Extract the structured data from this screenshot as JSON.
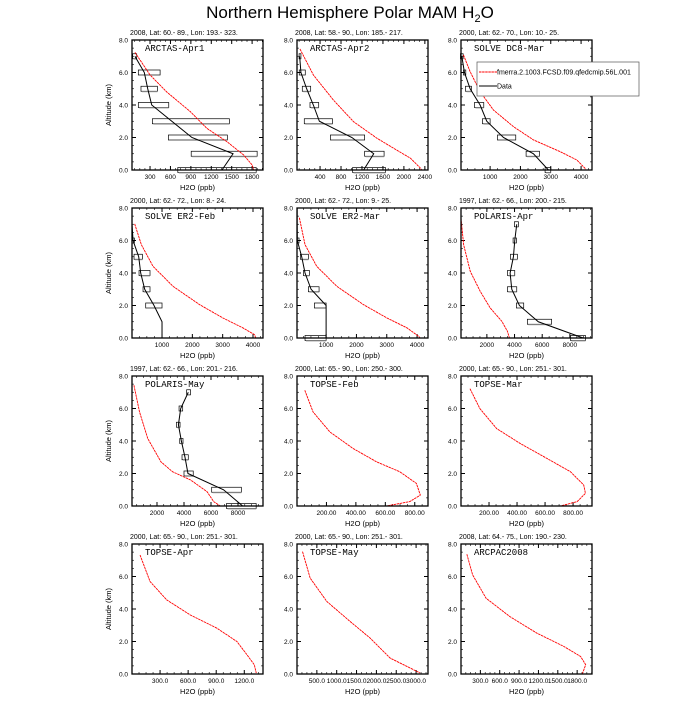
{
  "title": {
    "main": "Northern Hemisphere Polar MAM H",
    "sub": "2",
    "tail": "O"
  },
  "colors": {
    "model": "#ff0000",
    "data": "#000000",
    "box_edge": "#000000",
    "box_shade": "#aaaaaa"
  },
  "legend": {
    "model_label": "fmerra.2.1003.FCSD.f09.qfedcmip.56L.001",
    "data_label": "Data"
  },
  "chart_data": [
    {
      "type": "line",
      "title": "ARCTAS-Apr1",
      "subtitle": "2008, Lat:  60.- 89., Lon: 193.- 323.",
      "xlabel": "H2O (ppb)",
      "ylabel": "Altitude (km)",
      "xlim": [
        35,
        1960
      ],
      "ylim": [
        0,
        8
      ],
      "xticks": [
        300,
        600,
        900,
        1200,
        1500,
        1800
      ],
      "xtick_labels": [
        "300",
        "600",
        "900",
        "1200",
        "1500",
        "1800"
      ],
      "model": [
        [
          78,
          7.24
        ],
        [
          300,
          5.85
        ],
        [
          546,
          4.8
        ],
        [
          890,
          3.6
        ],
        [
          1136,
          2.56
        ],
        [
          1431,
          1.74
        ],
        [
          1677,
          0.92
        ],
        [
          1800,
          0.31
        ],
        [
          1825,
          0
        ]
      ],
      "data": [
        [
          78,
          7
        ],
        [
          216,
          6
        ],
        [
          266,
          5
        ],
        [
          325,
          4
        ],
        [
          620,
          3
        ],
        [
          915,
          2
        ],
        [
          1520,
          1
        ],
        [
          1357,
          0
        ]
      ],
      "boxes": [
        [
          45,
          104,
          7
        ],
        [
          128,
          448,
          6
        ],
        [
          167,
          408,
          5
        ],
        [
          128,
          575,
          4
        ],
        [
          334,
          1466,
          3
        ],
        [
          570,
          1436,
          2
        ],
        [
          905,
          1874,
          1
        ],
        [
          708,
          1860,
          0
        ]
      ]
    },
    {
      "type": "line",
      "title": "ARCTAS-Apr2",
      "subtitle": "2008, Lat:  58.- 90., Lon: 185.- 217.",
      "xlabel": "H2O (ppb)",
      "ylabel": "",
      "xlim": [
        -40,
        2460
      ],
      "ylim": [
        0,
        8
      ],
      "xticks": [
        400,
        800,
        1200,
        1600,
        2000,
        2400
      ],
      "xtick_labels": [
        "400",
        "800",
        "1200",
        "1600",
        "2000",
        "2400"
      ],
      "model": [
        [
          16,
          7.45
        ],
        [
          272,
          5.85
        ],
        [
          656,
          4.3
        ],
        [
          1040,
          2.97
        ],
        [
          1488,
          1.95
        ],
        [
          1808,
          1.33
        ],
        [
          2128,
          0.72
        ],
        [
          2320,
          0.1
        ],
        [
          2340,
          0
        ]
      ],
      "data": [
        [
          10,
          7
        ],
        [
          35,
          6
        ],
        [
          144,
          5
        ],
        [
          272,
          4
        ],
        [
          387,
          3
        ],
        [
          1008,
          2
        ],
        [
          1424,
          1
        ],
        [
          1232,
          0
        ]
      ],
      "boxes": [
        [
          0,
          35,
          7
        ],
        [
          3,
          118,
          6
        ],
        [
          61,
          221,
          5
        ],
        [
          208,
          374,
          4
        ],
        [
          99,
          637,
          3
        ],
        [
          598,
          1251,
          2
        ],
        [
          1251,
          1622,
          1
        ],
        [
          1021,
          1648,
          0
        ]
      ]
    },
    {
      "type": "line",
      "title": "SOLVE DC8-Mar",
      "subtitle": "2000, Lat: 62.- 70., Lon: 10.- 25.",
      "xlabel": "H2O (ppb)",
      "ylabel": "",
      "xlim": [
        40,
        4360
      ],
      "ylim": [
        0,
        8
      ],
      "xticks": [
        1000,
        2000,
        3000,
        4000
      ],
      "xtick_labels": [
        "1000",
        "2000",
        "3000",
        "4000"
      ],
      "model": [
        [
          121,
          7.08
        ],
        [
          341,
          6.05
        ],
        [
          670,
          4.82
        ],
        [
          1110,
          3.69
        ],
        [
          1769,
          2.67
        ],
        [
          2430,
          1.85
        ],
        [
          3308,
          1.13
        ],
        [
          3857,
          0.62
        ],
        [
          4132,
          0.1
        ],
        [
          4140,
          0
        ]
      ],
      "data": [
        [
          66,
          7
        ],
        [
          154,
          6
        ],
        [
          341,
          5
        ],
        [
          670,
          4
        ],
        [
          890,
          3
        ],
        [
          1440,
          2
        ],
        [
          2430,
          1
        ],
        [
          2923,
          0
        ]
      ],
      "boxes": [
        [
          22,
          110,
          7
        ],
        [
          121,
          198,
          6
        ],
        [
          187,
          385,
          5
        ],
        [
          483,
          791,
          4
        ],
        [
          747,
          1000,
          3
        ],
        [
          1242,
          1846,
          2
        ],
        [
          2187,
          2627,
          1
        ],
        [
          2813,
          3000,
          0
        ]
      ],
      "legend": true
    },
    {
      "type": "line",
      "title": "SOLVE ER2-Feb",
      "subtitle": "2000, Lat: 62.- 72., Lon: 8.- 24.",
      "xlabel": "H2O (ppb)",
      "ylabel": "Altitude (km)",
      "xlim": [
        10,
        4330
      ],
      "ylim": [
        0,
        8
      ],
      "xticks": [
        1000,
        2000,
        3000,
        4000
      ],
      "xtick_labels": [
        "1000",
        "2000",
        "3000",
        "4000"
      ],
      "model": [
        [
          99,
          7.02
        ],
        [
          319,
          5.74
        ],
        [
          703,
          4.41
        ],
        [
          1363,
          3.18
        ],
        [
          2242,
          2.05
        ],
        [
          3011,
          1.23
        ],
        [
          3670,
          0.62
        ],
        [
          4055,
          0.2
        ],
        [
          4088,
          0
        ]
      ],
      "data": [
        [
          11,
          8
        ],
        [
          11,
          7
        ],
        [
          44,
          6
        ],
        [
          231,
          5
        ],
        [
          297,
          4
        ],
        [
          429,
          3
        ],
        [
          736,
          2
        ],
        [
          1000,
          1
        ],
        [
          1000,
          0
        ]
      ],
      "boxes": [
        [
          11,
          88,
          6
        ],
        [
          77,
          352,
          5
        ],
        [
          242,
          604,
          4
        ],
        [
          374,
          604,
          3
        ],
        [
          462,
          1000,
          2
        ]
      ]
    },
    {
      "type": "line",
      "title": "SOLVE ER2-Mar",
      "subtitle": "2000, Lat: 62.- 72., Lon: 9.- 25.",
      "xlabel": "H2O (ppb)",
      "ylabel": "",
      "xlim": [
        40,
        4360
      ],
      "ylim": [
        0,
        8
      ],
      "xticks": [
        1000,
        2000,
        3000,
        4000
      ],
      "xtick_labels": [
        "1000",
        "2000",
        "3000",
        "4000"
      ],
      "model": [
        [
          118,
          7.4
        ],
        [
          305,
          5.74
        ],
        [
          691,
          4.41
        ],
        [
          1353,
          3.18
        ],
        [
          2235,
          2.05
        ],
        [
          3008,
          1.23
        ],
        [
          3670,
          0.62
        ],
        [
          4055,
          0.1
        ],
        [
          4100,
          0
        ]
      ],
      "data": [
        [
          45,
          8
        ],
        [
          45,
          7
        ],
        [
          51,
          6
        ],
        [
          195,
          5
        ],
        [
          305,
          4
        ],
        [
          504,
          3
        ],
        [
          1000,
          2
        ],
        [
          1000,
          1
        ],
        [
          1000,
          0
        ]
      ],
      "boxes": [
        [
          45,
          107,
          6
        ],
        [
          151,
          415,
          5
        ],
        [
          250,
          449,
          4
        ],
        [
          415,
          768,
          3
        ],
        [
          614,
          1000,
          2
        ],
        [
          305,
          1000,
          0
        ]
      ]
    },
    {
      "type": "line",
      "title": "POLARIS-Apr",
      "subtitle": "1997, Lat: 62.- 66., Lon: 200.- 215.",
      "xlabel": "H2O (ppb)",
      "ylabel": "",
      "xlim": [
        130,
        9600
      ],
      "ylim": [
        0,
        8
      ],
      "xticks": [
        2000,
        4000,
        6000,
        8000
      ],
      "xtick_labels": [
        "2000",
        "4000",
        "6000",
        "8000"
      ],
      "model": [
        [
          128,
          7.38
        ],
        [
          320,
          5.74
        ],
        [
          800,
          4.1
        ],
        [
          1520,
          2.87
        ],
        [
          2240,
          1.85
        ],
        [
          3080,
          1.03
        ],
        [
          3488,
          0.41
        ],
        [
          3632,
          0
        ]
      ],
      "data": [
        [
          4160,
          7
        ],
        [
          4016,
          6
        ],
        [
          3920,
          5
        ],
        [
          3680,
          4
        ],
        [
          3800,
          3
        ],
        [
          4352,
          2
        ],
        [
          5720,
          1
        ],
        [
          8960,
          0
        ]
      ],
      "boxes": [
        [
          3992,
          4280,
          7
        ],
        [
          3896,
          4136,
          6
        ],
        [
          3704,
          4208,
          5
        ],
        [
          3488,
          4016,
          4
        ],
        [
          3488,
          4160,
          3
        ],
        [
          4136,
          4664,
          2
        ],
        [
          4928,
          6680,
          1
        ],
        [
          8048,
          9128,
          0
        ]
      ]
    },
    {
      "type": "line",
      "title": "POLARIS-May",
      "subtitle": "1997, Lat: 62.- 66., Lon: 201.- 216.",
      "xlabel": "H2O (ppb)",
      "ylabel": "Altitude (km)",
      "xlim": [
        150,
        9850
      ],
      "ylim": [
        0,
        8
      ],
      "xticks": [
        2000,
        4000,
        6000,
        8000
      ],
      "xtick_labels": [
        "2000",
        "4000",
        "6000",
        "8000"
      ],
      "model": [
        [
          292,
          7.43
        ],
        [
          707,
          5.79
        ],
        [
          1317,
          4.15
        ],
        [
          2293,
          2.72
        ],
        [
          3147,
          2.11
        ],
        [
          4489,
          1.6
        ],
        [
          5709,
          0.88
        ],
        [
          6197,
          0.27
        ],
        [
          6685,
          0
        ]
      ],
      "data": [
        [
          4318,
          7
        ],
        [
          3757,
          6
        ],
        [
          3586,
          5
        ],
        [
          3806,
          4
        ],
        [
          4074,
          3
        ],
        [
          4294,
          2
        ],
        [
          6929,
          1
        ],
        [
          8344,
          0
        ]
      ],
      "boxes": [
        [
          4196,
          4489,
          7
        ],
        [
          3635,
          3903,
          6
        ],
        [
          3440,
          3708,
          5
        ],
        [
          3684,
          3928,
          4
        ],
        [
          3854,
          4318,
          3
        ],
        [
          4000,
          4684,
          2
        ],
        [
          6050,
          8246,
          1
        ],
        [
          7148,
          9344,
          0
        ]
      ]
    },
    {
      "type": "line",
      "title": "TOPSE-Feb",
      "subtitle": "2000, Lat: 65.- 90., Lon: 250.- 300.",
      "xlabel": "H2O (ppb)",
      "ylabel": "",
      "xlim": [
        0,
        890
      ],
      "ylim": [
        0,
        8
      ],
      "xticks": [
        200,
        400,
        600,
        800
      ],
      "xtick_labels": [
        "200.00",
        "400.00",
        "600.00",
        "800.00"
      ],
      "model": [
        [
          53,
          7.12
        ],
        [
          109,
          5.79
        ],
        [
          223,
          4.56
        ],
        [
          381,
          3.54
        ],
        [
          540,
          2.72
        ],
        [
          698,
          2.11
        ],
        [
          811,
          1.39
        ],
        [
          838,
          0.67
        ],
        [
          766,
          0.27
        ],
        [
          608,
          0
        ]
      ],
      "data": [],
      "boxes": []
    },
    {
      "type": "line",
      "title": "TOPSE-Mar",
      "subtitle": "2000, Lat: 65.- 90., Lon: 251.- 301.",
      "xlabel": "H2O (ppb)",
      "ylabel": "",
      "xlim": [
        0,
        935
      ],
      "ylim": [
        0,
        8
      ],
      "xticks": [
        200,
        400,
        600,
        800
      ],
      "xtick_labels": [
        "200.00",
        "400.00",
        "600.00",
        "800.00"
      ],
      "model": [
        [
          64,
          7.22
        ],
        [
          135,
          5.99
        ],
        [
          255,
          4.76
        ],
        [
          422,
          3.85
        ],
        [
          613,
          2.93
        ],
        [
          781,
          2.11
        ],
        [
          876,
          1.29
        ],
        [
          888,
          0.78
        ],
        [
          829,
          0.27
        ],
        [
          709,
          0
        ]
      ],
      "data": [],
      "boxes": []
    },
    {
      "type": "line",
      "title": "TOPSE-Apr",
      "subtitle": "2000, Lat: 65.- 90., Lon: 251.- 301.",
      "xlabel": "H2O (ppb)",
      "ylabel": "Altitude (km)",
      "xlim": [
        0,
        1400
      ],
      "ylim": [
        0,
        8
      ],
      "xticks": [
        300,
        600,
        900,
        1200
      ],
      "xtick_labels": [
        "300.0",
        "600.0",
        "900.0",
        "1200.0"
      ],
      "model": [
        [
          86,
          7.32
        ],
        [
          193,
          5.69
        ],
        [
          371,
          4.56
        ],
        [
          621,
          3.64
        ],
        [
          907,
          2.82
        ],
        [
          1121,
          2.0
        ],
        [
          1228,
          1.19
        ],
        [
          1307,
          0.57
        ],
        [
          1328,
          0.06
        ]
      ],
      "data": [],
      "boxes": []
    },
    {
      "type": "line",
      "title": "TOPSE-May",
      "subtitle": "2000, Lat: 65.- 90., Lon: 251.- 301.",
      "xlabel": "H2O (ppb)",
      "ylabel": "",
      "xlim": [
        0,
        3300
      ],
      "ylim": [
        0,
        8
      ],
      "xticks": [
        500,
        1000,
        1500,
        2000,
        2500,
        3000
      ],
      "xtick_labels": [
        "500.0",
        "1000.0",
        "1500.0",
        "2000.0",
        "2500.0",
        "3000.0"
      ],
      "model": [
        [
          139,
          7.53
        ],
        [
          332,
          5.9
        ],
        [
          752,
          4.46
        ],
        [
          1339,
          3.23
        ],
        [
          1842,
          2.21
        ],
        [
          2346,
          0.98
        ],
        [
          2849,
          0.37
        ],
        [
          3101,
          0.06
        ]
      ],
      "data": [],
      "boxes": []
    },
    {
      "type": "line",
      "title": "ARCPAC2008",
      "subtitle": "2008, Lat: 64.- 75., Lon: 190.- 230.",
      "xlabel": "H2O (ppb)",
      "ylabel": "",
      "xlim": [
        0,
        2030
      ],
      "ylim": [
        0,
        8
      ],
      "xticks": [
        300,
        600,
        900,
        1200,
        1500,
        1800
      ],
      "xtick_labels": [
        "300.0",
        "600.0",
        "900.0",
        "1200.0",
        "1500.0",
        "1800.0"
      ],
      "model": [
        [
          91,
          7.37
        ],
        [
          180,
          6.1
        ],
        [
          389,
          4.66
        ],
        [
          755,
          3.54
        ],
        [
          1173,
          2.52
        ],
        [
          1592,
          1.7
        ],
        [
          1853,
          1.08
        ],
        [
          1932,
          0.57
        ],
        [
          1880,
          0
        ]
      ],
      "data": [],
      "boxes": []
    }
  ],
  "yticks": [
    0,
    2,
    4,
    6,
    8
  ],
  "ytick_labels": [
    "0.0",
    "2.0",
    "4.0",
    "6.0",
    "8.0"
  ]
}
